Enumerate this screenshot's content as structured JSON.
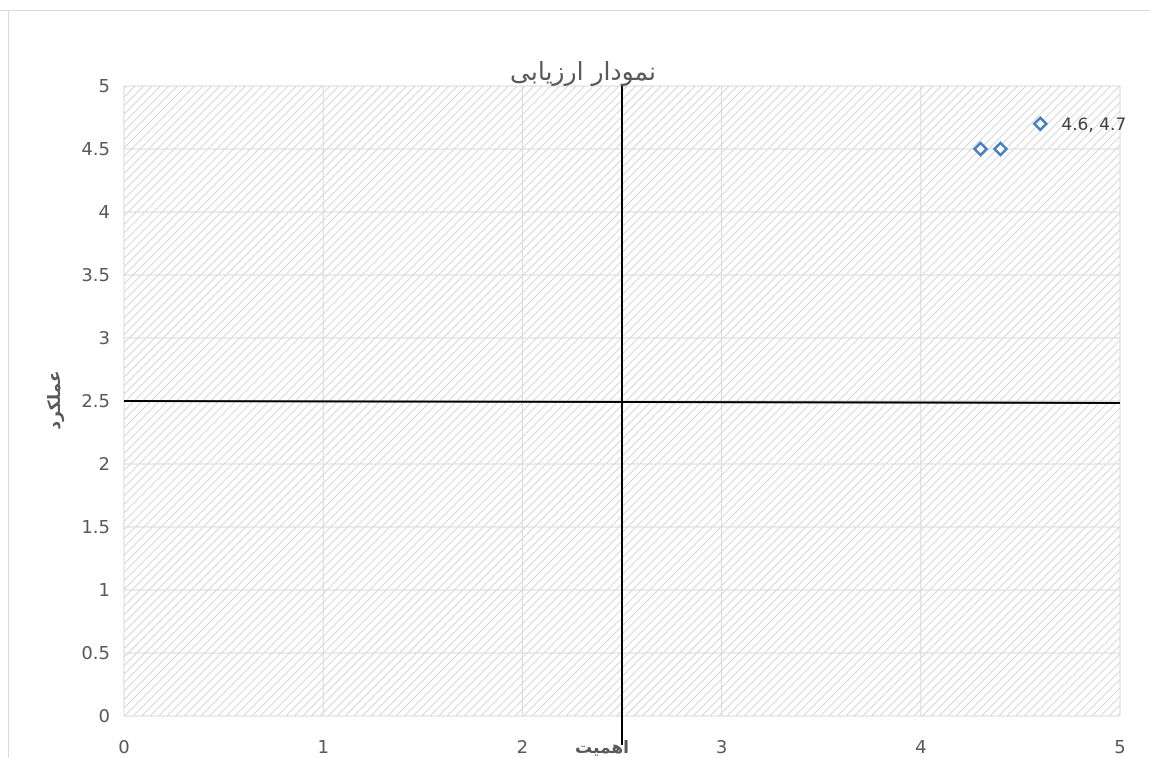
{
  "chart_data": {
    "type": "scatter",
    "title": "نمودار ارزیابی",
    "xlabel": "اهمیت",
    "ylabel": "عملکرد",
    "xlim": [
      0,
      5
    ],
    "ylim": [
      0,
      5
    ],
    "x_ticks": [
      "0",
      "1",
      "2",
      "3",
      "4",
      "5"
    ],
    "y_ticks": [
      "0",
      "0.5",
      "1",
      "1.5",
      "2",
      "2.5",
      "3",
      "3.5",
      "4",
      "4.5",
      "5"
    ],
    "grid": true,
    "legend": "none",
    "series": [
      {
        "points": [
          {
            "x": 4.3,
            "y": 4.5,
            "label": ""
          },
          {
            "x": 4.4,
            "y": 4.5,
            "label": ""
          },
          {
            "x": 4.6,
            "y": 4.7,
            "label": "4.6, 4.7"
          }
        ]
      }
    ],
    "reference_lines": {
      "vertical_x": 2.5,
      "horizontal_y": 2.5
    },
    "colors": {
      "marker": "#4a7ebb",
      "grid": "#d9d9d9",
      "hatch": "#bfbfbf",
      "reference": "#000000",
      "text": "#595959"
    }
  }
}
